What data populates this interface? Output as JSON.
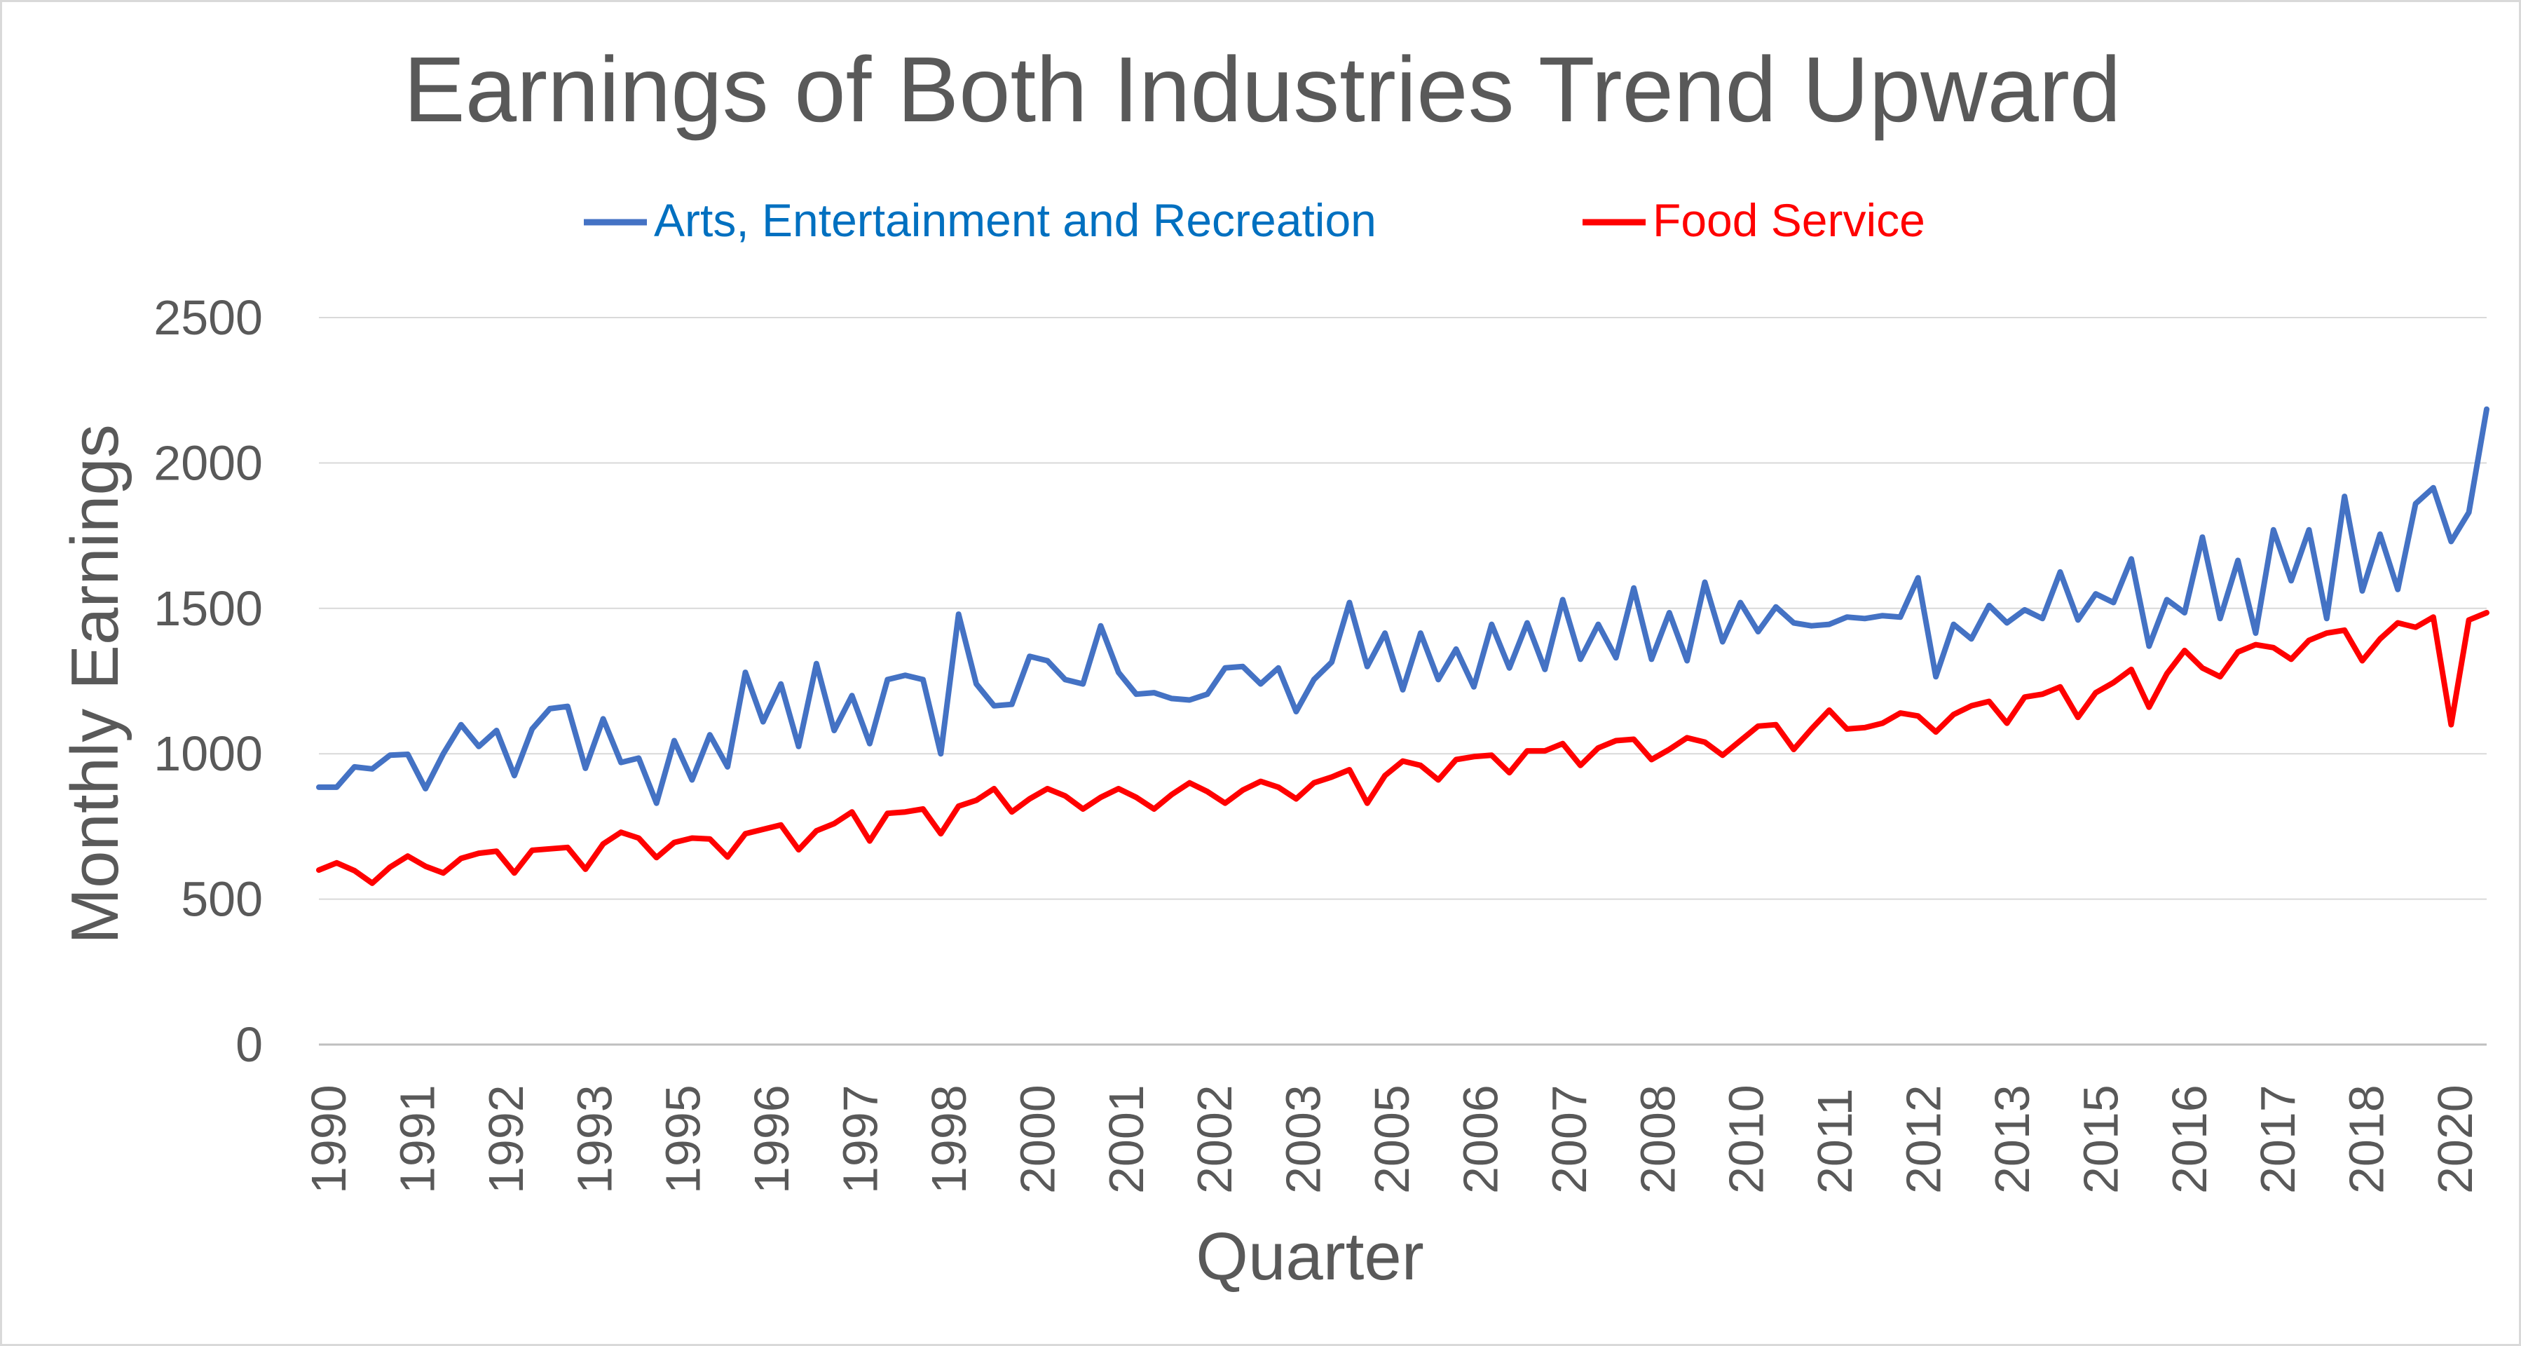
{
  "chart_data": {
    "type": "line",
    "title": "Earnings of Both Industries Trend Upward",
    "xlabel": "Quarter",
    "ylabel": "Monthly Earnings",
    "ylim": [
      0,
      2500
    ],
    "yticks": [
      0,
      500,
      1000,
      1500,
      2000,
      2500
    ],
    "grid": true,
    "legend_position": "top",
    "x_tick_labels": [
      "1990",
      "1991",
      "1992",
      "1993",
      "1995",
      "1996",
      "1997",
      "1998",
      "2000",
      "2001",
      "2002",
      "2003",
      "2005",
      "2006",
      "2007",
      "2008",
      "2010",
      "2011",
      "2012",
      "2013",
      "2015",
      "2016",
      "2017",
      "2018",
      "2020"
    ],
    "series": [
      {
        "name": "Arts, Entertainment and Recreation",
        "color": "#4472C4",
        "values": [
          885,
          885,
          955,
          948,
          995,
          998,
          880,
          1000,
          1100,
          1025,
          1080,
          925,
          1085,
          1155,
          1163,
          950,
          1120,
          970,
          985,
          830,
          1045,
          910,
          1065,
          955,
          1280,
          1110,
          1240,
          1025,
          1310,
          1080,
          1200,
          1035,
          1255,
          1270,
          1255,
          1000,
          1480,
          1240,
          1165,
          1170,
          1335,
          1320,
          1255,
          1240,
          1440,
          1280,
          1205,
          1210,
          1190,
          1185,
          1205,
          1295,
          1300,
          1240,
          1295,
          1145,
          1255,
          1315,
          1520,
          1300,
          1415,
          1220,
          1415,
          1255,
          1360,
          1230,
          1445,
          1295,
          1450,
          1290,
          1530,
          1325,
          1445,
          1330,
          1570,
          1325,
          1485,
          1320,
          1590,
          1385,
          1520,
          1420,
          1505,
          1450,
          1440,
          1445,
          1470,
          1465,
          1475,
          1470,
          1605,
          1265,
          1445,
          1395,
          1510,
          1450,
          1495,
          1465,
          1625,
          1460,
          1550,
          1520,
          1670,
          1370,
          1530,
          1485,
          1745,
          1465,
          1665,
          1415,
          1770,
          1595,
          1770,
          1465,
          1885,
          1560,
          1755,
          1565,
          1860,
          1915,
          1730,
          1830,
          2185
        ]
      },
      {
        "name": "Food Service",
        "color": "#FF0000",
        "values": [
          600,
          625,
          598,
          555,
          610,
          648,
          613,
          590,
          640,
          658,
          665,
          590,
          668,
          673,
          678,
          603,
          690,
          730,
          710,
          643,
          695,
          710,
          707,
          645,
          725,
          740,
          755,
          670,
          735,
          760,
          800,
          700,
          795,
          800,
          810,
          725,
          820,
          840,
          880,
          800,
          845,
          880,
          855,
          810,
          850,
          880,
          850,
          810,
          860,
          900,
          870,
          830,
          875,
          905,
          885,
          845,
          900,
          920,
          945,
          830,
          925,
          975,
          960,
          910,
          980,
          990,
          995,
          935,
          1010,
          1010,
          1035,
          960,
          1020,
          1045,
          1050,
          980,
          1015,
          1055,
          1040,
          995,
          1045,
          1095,
          1100,
          1015,
          1085,
          1150,
          1085,
          1090,
          1105,
          1140,
          1130,
          1075,
          1135,
          1165,
          1180,
          1105,
          1195,
          1205,
          1230,
          1125,
          1210,
          1245,
          1290,
          1160,
          1275,
          1355,
          1295,
          1265,
          1350,
          1375,
          1365,
          1325,
          1390,
          1415,
          1425,
          1320,
          1395,
          1450,
          1435,
          1470,
          1100,
          1460,
          1485
        ]
      }
    ]
  }
}
